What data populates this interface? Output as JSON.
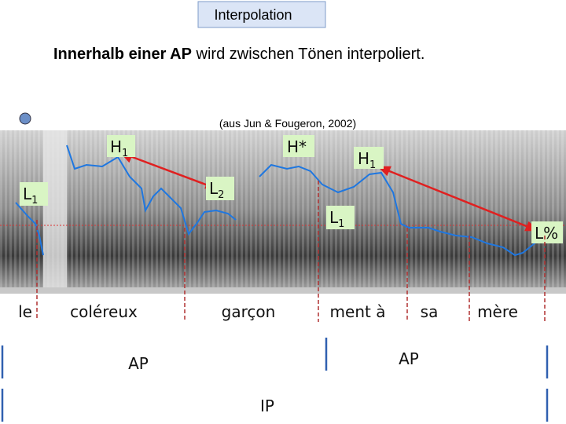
{
  "header": {
    "title": "Interpolation",
    "subtitle_bold": "Innerhalb einer AP",
    "subtitle_rest": " wird zwischen Tönen interpoliert."
  },
  "citation": "(aus Jun & Fougeron, 2002)",
  "tones": [
    {
      "base": "H",
      "sub": "1"
    },
    {
      "base": "H*",
      "sub": null
    },
    {
      "base": "H",
      "sub": "1"
    },
    {
      "base": "L",
      "sub": "1"
    },
    {
      "base": "L",
      "sub": "2"
    },
    {
      "base": "L",
      "sub": "1"
    },
    {
      "base": "L%",
      "sub": null
    }
  ],
  "words": [
    "le",
    "coléreux",
    "garçon",
    "ment à",
    "sa",
    "mère"
  ],
  "phrases": [
    "AP",
    "AP",
    "IP"
  ]
}
